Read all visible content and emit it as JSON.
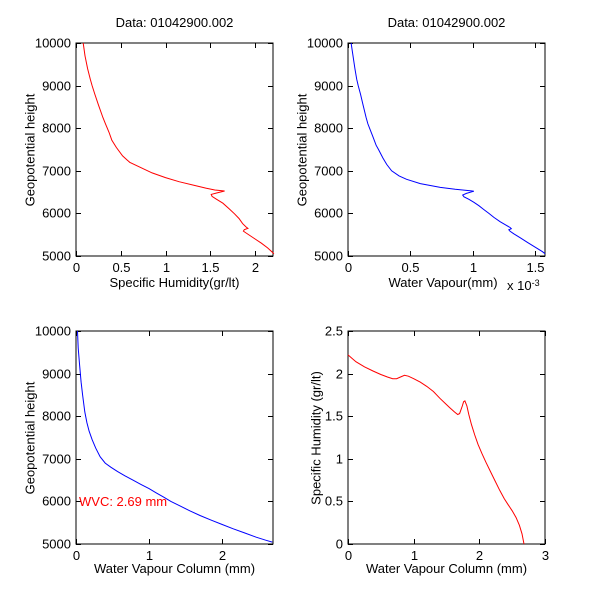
{
  "figure": {
    "background": "#ffffff",
    "axis_color": "#000000",
    "text_color": "#000000"
  },
  "chart_data": [
    {
      "id": "specific-humidity-vs-height",
      "type": "line",
      "position": "top-left",
      "title": "Data: 01042900.002",
      "xlabel": "Specific Humidity(gr/lt)",
      "ylabel": "Geopotential height",
      "line_color": "#ff0000",
      "xlim": [
        0,
        2.2
      ],
      "ylim": [
        5000,
        10000
      ],
      "xticks": [
        "0",
        "0.5",
        "1",
        "1.5",
        "2"
      ],
      "yticks": [
        "5000",
        "6000",
        "7000",
        "8000",
        "9000",
        "10000"
      ],
      "grid": false,
      "points": [
        [
          0.08,
          10000
        ],
        [
          0.1,
          9700
        ],
        [
          0.13,
          9400
        ],
        [
          0.16,
          9150
        ],
        [
          0.18,
          9000
        ],
        [
          0.21,
          8800
        ],
        [
          0.25,
          8550
        ],
        [
          0.3,
          8250
        ],
        [
          0.33,
          8100
        ],
        [
          0.37,
          7900
        ],
        [
          0.4,
          7720
        ],
        [
          0.45,
          7550
        ],
        [
          0.52,
          7350
        ],
        [
          0.6,
          7200
        ],
        [
          0.72,
          7080
        ],
        [
          0.85,
          6950
        ],
        [
          1.0,
          6840
        ],
        [
          1.15,
          6745
        ],
        [
          1.31,
          6665
        ],
        [
          1.45,
          6595
        ],
        [
          1.55,
          6550
        ],
        [
          1.62,
          6535
        ],
        [
          1.66,
          6525
        ],
        [
          1.57,
          6480
        ],
        [
          1.51,
          6445
        ],
        [
          1.52,
          6400
        ],
        [
          1.57,
          6330
        ],
        [
          1.64,
          6240
        ],
        [
          1.71,
          6110
        ],
        [
          1.77,
          5990
        ],
        [
          1.82,
          5880
        ],
        [
          1.86,
          5760
        ],
        [
          1.9,
          5680
        ],
        [
          1.92,
          5650
        ],
        [
          1.88,
          5620
        ],
        [
          1.87,
          5585
        ],
        [
          1.9,
          5540
        ],
        [
          1.95,
          5470
        ],
        [
          2.0,
          5400
        ],
        [
          2.07,
          5300
        ],
        [
          2.14,
          5190
        ],
        [
          2.19,
          5095
        ],
        [
          2.21,
          5050
        ]
      ]
    },
    {
      "id": "water-vapour-vs-height",
      "type": "line",
      "position": "top-right",
      "title": "Data: 01042900.002",
      "xlabel": "Water Vapour(mm)",
      "ylabel": "Geopotential height",
      "x_exponent": {
        "prefix": "x 10",
        "power": "-3"
      },
      "line_color": "#0000ff",
      "xlim": [
        0,
        1.58
      ],
      "ylim": [
        5000,
        10000
      ],
      "xticks": [
        "0",
        "0.5",
        "1",
        "1.5"
      ],
      "yticks": [
        "5000",
        "6000",
        "7000",
        "8000",
        "9000",
        "10000"
      ],
      "grid": false,
      "points": [
        [
          0.025,
          10000
        ],
        [
          0.04,
          9700
        ],
        [
          0.055,
          9400
        ],
        [
          0.07,
          9150
        ],
        [
          0.082,
          9000
        ],
        [
          0.1,
          8800
        ],
        [
          0.12,
          8550
        ],
        [
          0.145,
          8250
        ],
        [
          0.16,
          8100
        ],
        [
          0.18,
          7950
        ],
        [
          0.2,
          7800
        ],
        [
          0.225,
          7600
        ],
        [
          0.245,
          7500
        ],
        [
          0.28,
          7300
        ],
        [
          0.31,
          7150
        ],
        [
          0.35,
          7000
        ],
        [
          0.41,
          6880
        ],
        [
          0.47,
          6800
        ],
        [
          0.58,
          6700
        ],
        [
          0.74,
          6610
        ],
        [
          0.86,
          6565
        ],
        [
          0.95,
          6540
        ],
        [
          0.99,
          6528
        ],
        [
          1.01,
          6520
        ],
        [
          0.95,
          6470
        ],
        [
          0.92,
          6430
        ],
        [
          0.93,
          6390
        ],
        [
          0.97,
          6330
        ],
        [
          1.01,
          6260
        ],
        [
          1.05,
          6180
        ],
        [
          1.09,
          6090
        ],
        [
          1.13,
          6000
        ],
        [
          1.17,
          5905
        ],
        [
          1.22,
          5805
        ],
        [
          1.27,
          5720
        ],
        [
          1.3,
          5670
        ],
        [
          1.31,
          5640
        ],
        [
          1.29,
          5615
        ],
        [
          1.3,
          5580
        ],
        [
          1.33,
          5520
        ],
        [
          1.38,
          5430
        ],
        [
          1.44,
          5320
        ],
        [
          1.5,
          5210
        ],
        [
          1.56,
          5100
        ],
        [
          1.58,
          5055
        ]
      ]
    },
    {
      "id": "water-vapour-column-vs-height",
      "type": "line",
      "position": "bottom-left",
      "title": "",
      "xlabel": "Water Vapour Column (mm)",
      "ylabel": "Geopotential height",
      "annotation": {
        "text": "WVC: 2.69 mm",
        "color": "#ff0000",
        "x": 0.05,
        "y": 6000
      },
      "line_color": "#0000ff",
      "xlim": [
        0,
        2.7
      ],
      "ylim": [
        5000,
        10000
      ],
      "xticks": [
        "0",
        "1",
        "2"
      ],
      "yticks": [
        "5000",
        "6000",
        "7000",
        "8000",
        "9000",
        "10000"
      ],
      "grid": false,
      "points": [
        [
          0.02,
          10000
        ],
        [
          0.03,
          9600
        ],
        [
          0.05,
          9200
        ],
        [
          0.07,
          8800
        ],
        [
          0.09,
          8500
        ],
        [
          0.12,
          8100
        ],
        [
          0.15,
          7850
        ],
        [
          0.18,
          7650
        ],
        [
          0.22,
          7450
        ],
        [
          0.27,
          7250
        ],
        [
          0.33,
          7050
        ],
        [
          0.4,
          6900
        ],
        [
          0.48,
          6800
        ],
        [
          0.57,
          6700
        ],
        [
          0.67,
          6600
        ],
        [
          0.78,
          6500
        ],
        [
          0.89,
          6400
        ],
        [
          1.0,
          6300
        ],
        [
          1.1,
          6200
        ],
        [
          1.2,
          6100
        ],
        [
          1.3,
          6000
        ],
        [
          1.43,
          5890
        ],
        [
          1.56,
          5780
        ],
        [
          1.7,
          5670
        ],
        [
          1.85,
          5560
        ],
        [
          2.0,
          5460
        ],
        [
          2.15,
          5360
        ],
        [
          2.31,
          5260
        ],
        [
          2.47,
          5160
        ],
        [
          2.6,
          5090
        ],
        [
          2.69,
          5045
        ]
      ]
    },
    {
      "id": "specific-humidity-vs-water-vapour-column",
      "type": "line",
      "position": "bottom-right",
      "title": "",
      "xlabel": "Water Vapour Column (mm)",
      "ylabel": "Specific Humidity (gr/lt)",
      "line_color": "#ff0000",
      "xlim": [
        0,
        3
      ],
      "ylim": [
        0,
        2.5
      ],
      "xticks": [
        "0",
        "1",
        "2",
        "3"
      ],
      "yticks": [
        "0",
        "0.5",
        "1",
        "1.5",
        "2",
        "2.5"
      ],
      "grid": false,
      "points": [
        [
          0.0,
          2.22
        ],
        [
          0.12,
          2.14
        ],
        [
          0.25,
          2.08
        ],
        [
          0.38,
          2.03
        ],
        [
          0.5,
          1.99
        ],
        [
          0.6,
          1.96
        ],
        [
          0.68,
          1.94
        ],
        [
          0.74,
          1.94
        ],
        [
          0.8,
          1.96
        ],
        [
          0.86,
          1.98
        ],
        [
          0.92,
          1.97
        ],
        [
          1.0,
          1.94
        ],
        [
          1.1,
          1.9
        ],
        [
          1.2,
          1.85
        ],
        [
          1.3,
          1.79
        ],
        [
          1.4,
          1.71
        ],
        [
          1.48,
          1.65
        ],
        [
          1.55,
          1.6
        ],
        [
          1.62,
          1.55
        ],
        [
          1.67,
          1.52
        ],
        [
          1.7,
          1.53
        ],
        [
          1.74,
          1.62
        ],
        [
          1.76,
          1.67
        ],
        [
          1.78,
          1.68
        ],
        [
          1.81,
          1.62
        ],
        [
          1.84,
          1.52
        ],
        [
          1.88,
          1.4
        ],
        [
          1.93,
          1.28
        ],
        [
          1.98,
          1.17
        ],
        [
          2.04,
          1.06
        ],
        [
          2.1,
          0.96
        ],
        [
          2.17,
          0.85
        ],
        [
          2.24,
          0.74
        ],
        [
          2.31,
          0.63
        ],
        [
          2.38,
          0.53
        ],
        [
          2.44,
          0.46
        ],
        [
          2.5,
          0.39
        ],
        [
          2.56,
          0.31
        ],
        [
          2.61,
          0.22
        ],
        [
          2.65,
          0.12
        ],
        [
          2.68,
          0.0
        ]
      ]
    }
  ]
}
